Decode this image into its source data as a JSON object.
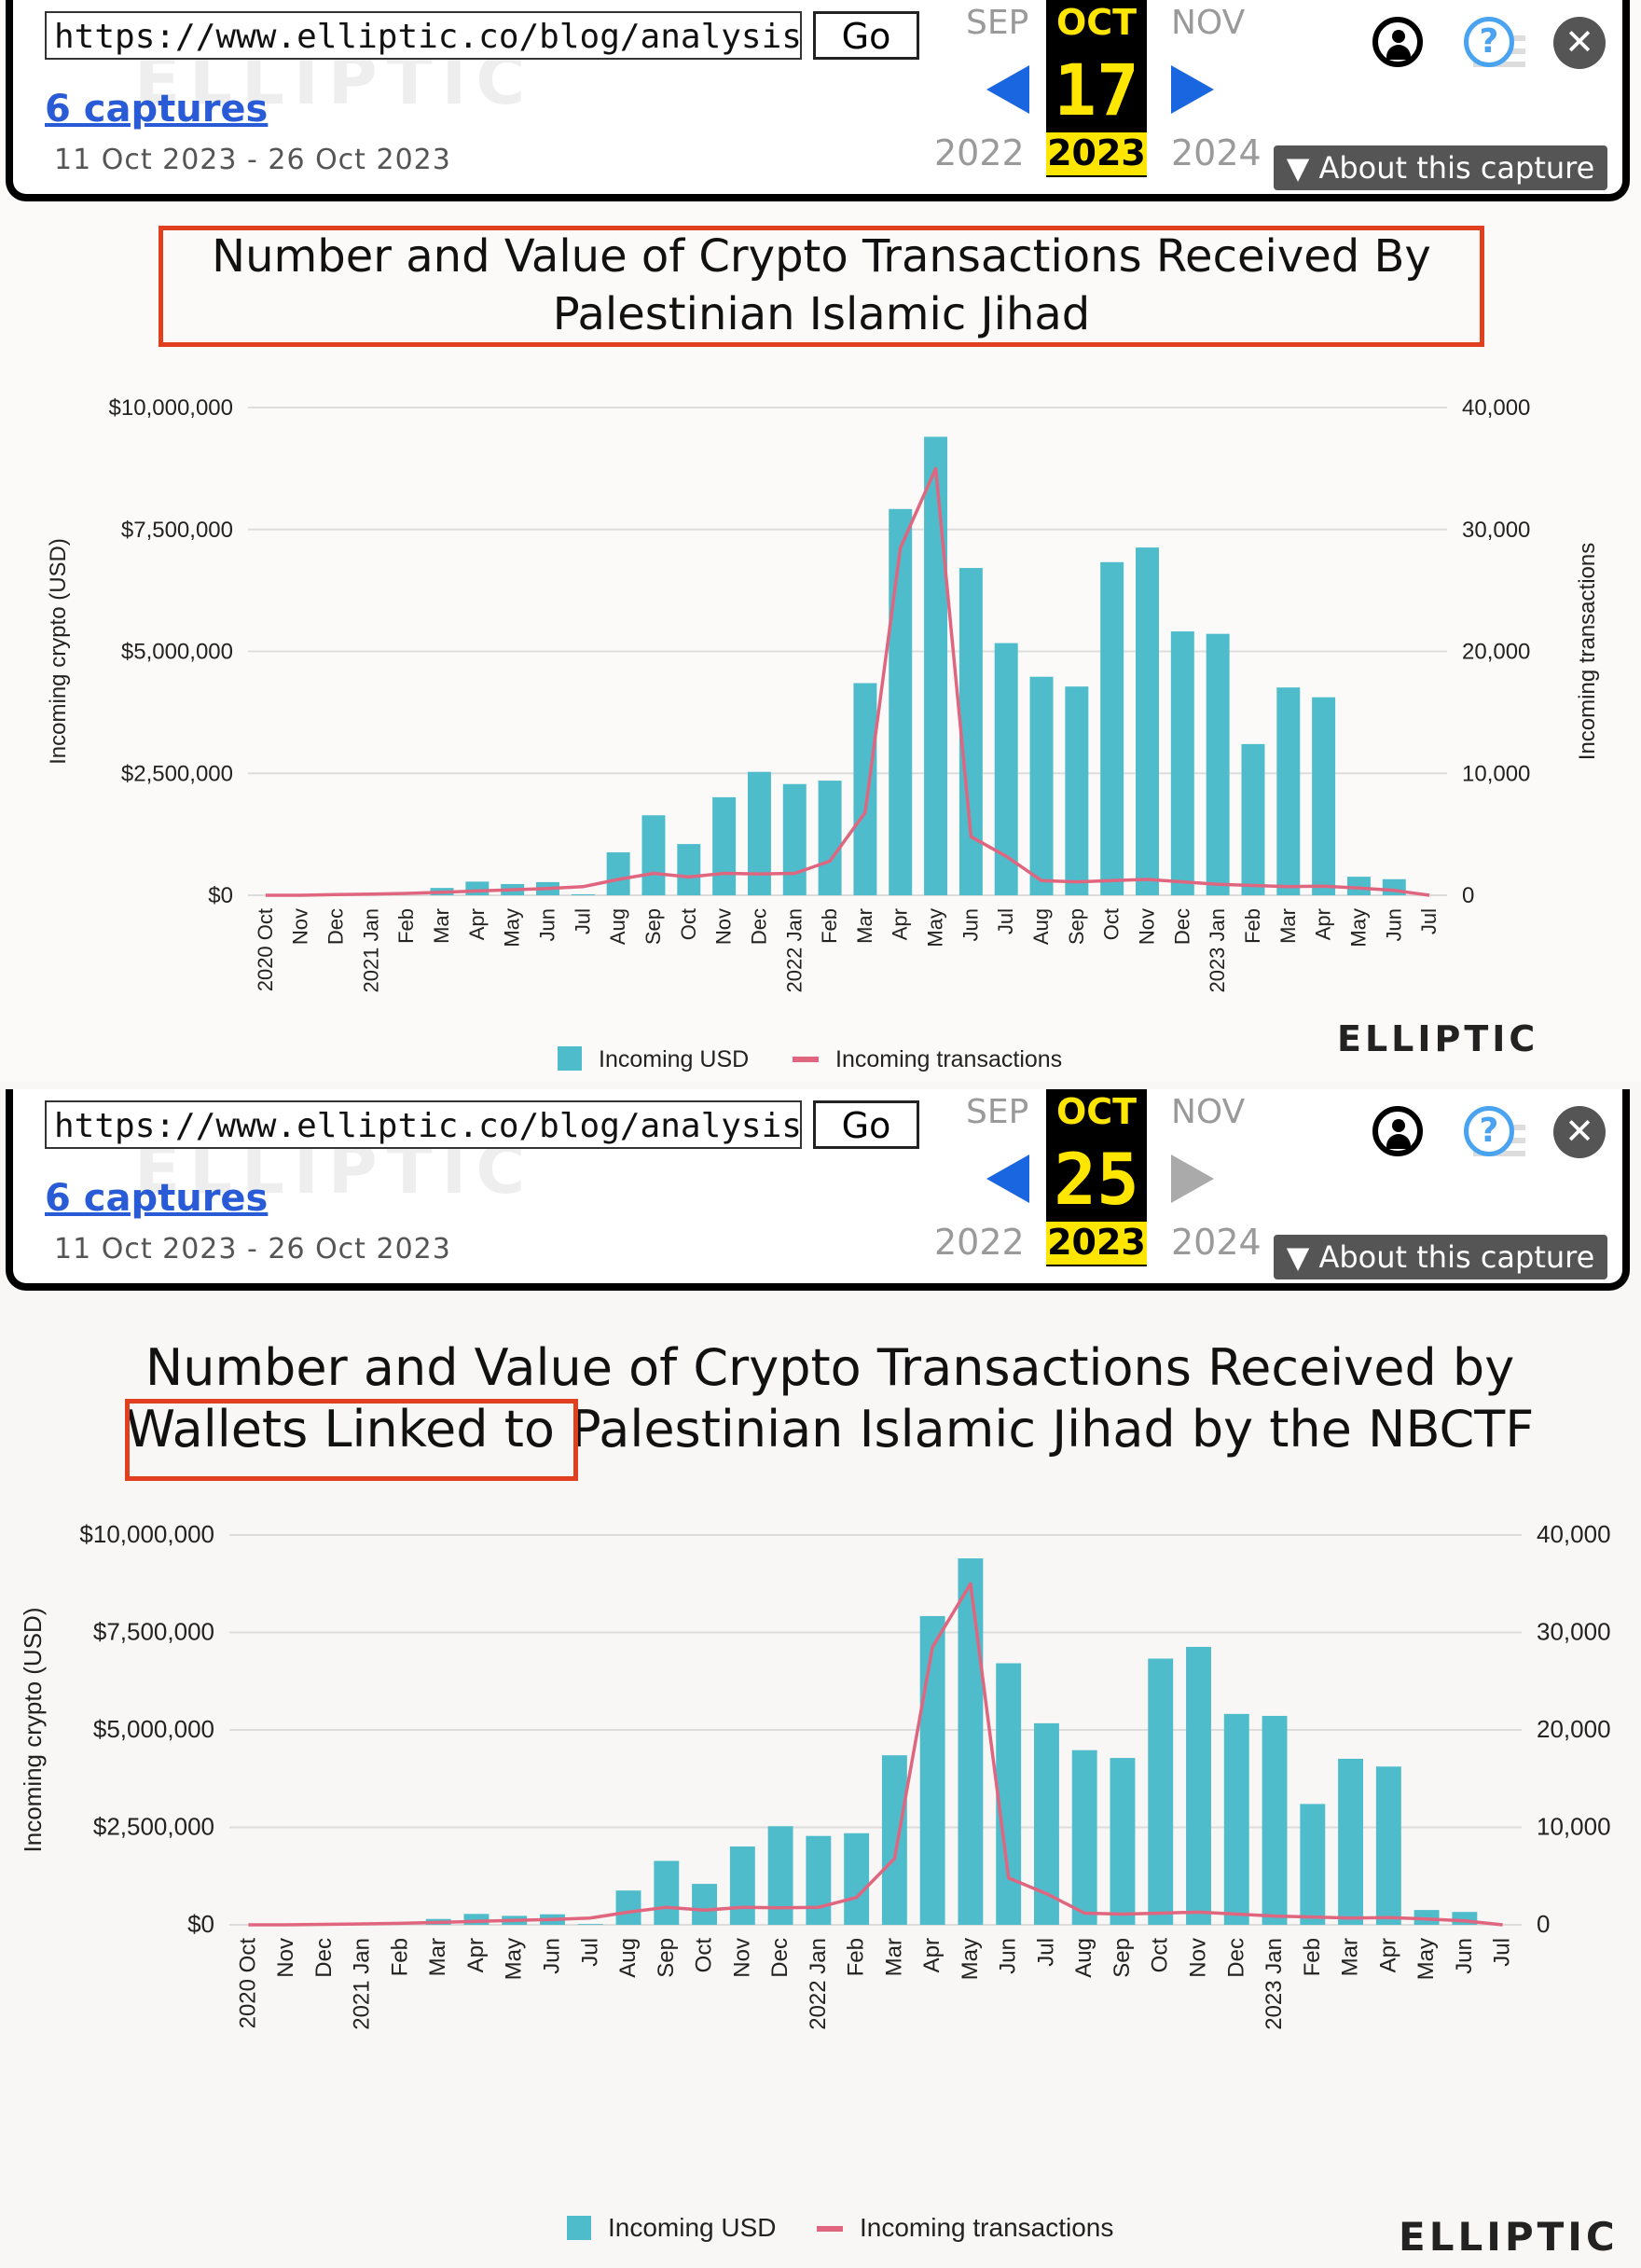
{
  "wayback": [
    {
      "url": "https://www.elliptic.co/blog/analysis/isr",
      "go_label": "Go",
      "captures_label": "6 captures",
      "date_range": "11 Oct 2023 - 26 Oct 2023",
      "watermark": "ELLIPTIC",
      "prev_month": "SEP",
      "cur_month": "OCT",
      "next_month": "NOV",
      "cur_day": "17",
      "prev_year": "2022",
      "cur_year": "2023",
      "next_year": "2024",
      "about_label": "About this capture",
      "next_enabled": true
    },
    {
      "url": "https://www.elliptic.co/blog/analysis/isr",
      "go_label": "Go",
      "captures_label": "6 captures",
      "date_range": "11 Oct 2023 - 26 Oct 2023",
      "watermark": "ELLIPTIC",
      "prev_month": "SEP",
      "cur_month": "OCT",
      "next_month": "NOV",
      "cur_day": "25",
      "prev_year": "2022",
      "cur_year": "2023",
      "next_year": "2024",
      "about_label": "About this capture",
      "next_enabled": false
    }
  ],
  "colors": {
    "bar": "#4ebccb",
    "line": "#e06680",
    "highlight_box": "#e04020",
    "wayback_link": "#2a5bd7",
    "wayback_year_highlight": "#ffe600"
  },
  "chart_data": [
    {
      "type": "bar",
      "title_line1": "Number and Value of Crypto Transactions Received By",
      "title_line2": "Palestinian Islamic Jihad",
      "ylabel": "Incoming crypto (USD)",
      "y2label": "Incoming transactions",
      "ylim": [
        0,
        10000000
      ],
      "y2lim": [
        0,
        40000
      ],
      "yticks": [
        "$10,000,000",
        "$7,500,000",
        "$5,000,000",
        "$2,500,000",
        "$0"
      ],
      "y2ticks": [
        "40,000",
        "30,000",
        "20,000",
        "10,000",
        "0"
      ],
      "categories": [
        "2020 Oct",
        "Nov",
        "Dec",
        "2021 Jan",
        "Feb",
        "Mar",
        "Apr",
        "May",
        "Jun",
        "Jul",
        "Aug",
        "Sep",
        "Oct",
        "Nov",
        "Dec",
        "2022 Jan",
        "Feb",
        "Mar",
        "Apr",
        "May",
        "Jun",
        "Jul",
        "Aug",
        "Sep",
        "Oct",
        "Nov",
        "Dec",
        "2023 Jan",
        "Feb",
        "Mar",
        "Apr",
        "May",
        "Jun",
        "Jul"
      ],
      "series": [
        {
          "name": "Incoming USD",
          "axis": "left",
          "kind": "bar",
          "values": [
            0,
            0,
            0,
            0,
            0,
            150000,
            280000,
            230000,
            270000,
            20000,
            880000,
            1640000,
            1050000,
            2010000,
            2530000,
            2280000,
            2350000,
            4350000,
            7920000,
            9400000,
            6710000,
            5170000,
            4480000,
            4280000,
            6830000,
            7130000,
            5410000,
            5360000,
            3100000,
            4260000,
            4060000,
            380000,
            330000,
            0
          ]
        },
        {
          "name": "Incoming transactions",
          "axis": "right",
          "kind": "line",
          "values": [
            0,
            0,
            50,
            100,
            150,
            250,
            350,
            450,
            550,
            700,
            1300,
            1800,
            1500,
            1800,
            1750,
            1800,
            2800,
            6800,
            28500,
            35000,
            4800,
            3200,
            1200,
            1100,
            1200,
            1300,
            1100,
            900,
            800,
            700,
            750,
            600,
            400,
            0
          ]
        }
      ],
      "legend": [
        "Incoming USD",
        "Incoming transactions"
      ],
      "logo": "ELLIPTIC"
    },
    {
      "type": "bar",
      "title_line1": "Number and Value of Crypto Transactions Received by",
      "title_line2_highlight": "Wallets Linked to",
      "title_line2_rest": " Palestinian Islamic Jihad by the NBCTF",
      "ylabel": "Incoming crypto (USD)",
      "y2label": "",
      "ylim": [
        0,
        10000000
      ],
      "y2lim": [
        0,
        40000
      ],
      "yticks": [
        "$10,000,000",
        "$7,500,000",
        "$5,000,000",
        "$2,500,000",
        "$0"
      ],
      "y2ticks": [
        "40,000",
        "30,000",
        "20,000",
        "10,000",
        "0"
      ],
      "categories": [
        "2020 Oct",
        "Nov",
        "Dec",
        "2021 Jan",
        "Feb",
        "Mar",
        "Apr",
        "May",
        "Jun",
        "Jul",
        "Aug",
        "Sep",
        "Oct",
        "Nov",
        "Dec",
        "2022 Jan",
        "Feb",
        "Mar",
        "Apr",
        "May",
        "Jun",
        "Jul",
        "Aug",
        "Sep",
        "Oct",
        "Nov",
        "Dec",
        "2023 Jan",
        "Feb",
        "Mar",
        "Apr",
        "May",
        "Jun",
        "Jul"
      ],
      "series": [
        {
          "name": "Incoming USD",
          "axis": "left",
          "kind": "bar",
          "values": [
            0,
            0,
            0,
            0,
            0,
            150000,
            280000,
            230000,
            270000,
            20000,
            880000,
            1640000,
            1050000,
            2010000,
            2530000,
            2280000,
            2350000,
            4350000,
            7920000,
            9400000,
            6710000,
            5170000,
            4480000,
            4280000,
            6830000,
            7130000,
            5410000,
            5360000,
            3100000,
            4260000,
            4060000,
            380000,
            330000,
            0
          ]
        },
        {
          "name": "Incoming transactions",
          "axis": "right",
          "kind": "line",
          "values": [
            0,
            0,
            50,
            100,
            150,
            250,
            350,
            450,
            550,
            700,
            1300,
            1800,
            1500,
            1800,
            1750,
            1800,
            2800,
            6800,
            28500,
            35000,
            4800,
            3200,
            1200,
            1100,
            1200,
            1300,
            1100,
            900,
            800,
            700,
            750,
            600,
            400,
            0
          ]
        }
      ],
      "legend": [
        "Incoming USD",
        "Incoming transactions"
      ],
      "logo": "ELLIPTIC"
    }
  ]
}
